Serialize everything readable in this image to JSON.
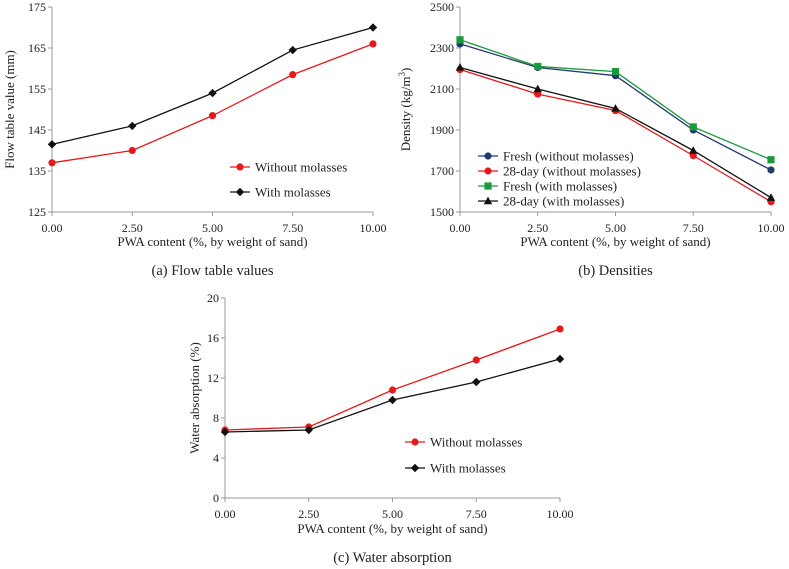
{
  "chart_data": [
    {
      "type": "line",
      "caption": "(a) Flow table values",
      "xlabel": "PWA content (%, by weight of sand)",
      "ylabel": "Flow table value (mm)",
      "x": [
        0.0,
        2.5,
        5.0,
        7.5,
        10.0
      ],
      "xticks": [
        "0.00",
        "2.50",
        "5.00",
        "7.50",
        "10.00"
      ],
      "xlim": [
        0,
        10
      ],
      "yticks": [
        "125",
        "135",
        "145",
        "155",
        "165",
        "175"
      ],
      "ylim": [
        125,
        175
      ],
      "series": [
        {
          "name": "Without molasses",
          "color": "#e8191d",
          "marker": "circle",
          "values": [
            137,
            140,
            148.5,
            158.5,
            166
          ]
        },
        {
          "name": "With molasses",
          "color": "#111111",
          "marker": "diamond",
          "values": [
            141.5,
            146,
            154,
            164.5,
            170
          ]
        }
      ]
    },
    {
      "type": "line",
      "caption": "(b) Densities",
      "xlabel": "PWA content (%, by weight of sand)",
      "ylabel_main": "Density (kg/m",
      "ylabel_sup": "3",
      "ylabel_end": ")",
      "x": [
        0.0,
        2.5,
        5.0,
        7.5,
        10.0
      ],
      "xticks": [
        "0.00",
        "2.50",
        "5.00",
        "7.50",
        "10.00"
      ],
      "xlim": [
        0,
        10
      ],
      "yticks": [
        "1500",
        "1700",
        "1900",
        "2100",
        "2300",
        "2500"
      ],
      "ylim": [
        1500,
        2500
      ],
      "series": [
        {
          "name": "Fresh (without molasses)",
          "color": "#1f3a6e",
          "marker": "circle",
          "values": [
            2320,
            2205,
            2165,
            1900,
            1705
          ]
        },
        {
          "name": "28-day (without molasses)",
          "color": "#e8191d",
          "marker": "circle",
          "values": [
            2195,
            2075,
            1995,
            1775,
            1550
          ]
        },
        {
          "name": "Fresh (with molasses)",
          "color": "#1a9a3c",
          "marker": "square",
          "values": [
            2340,
            2210,
            2185,
            1915,
            1755
          ]
        },
        {
          "name": "28-day (with molasses)",
          "color": "#111111",
          "marker": "triangle",
          "values": [
            2205,
            2100,
            2005,
            1800,
            1570
          ]
        }
      ]
    },
    {
      "type": "line",
      "caption": "(c) Water absorption",
      "xlabel": "PWA content (%, by weight of sand)",
      "ylabel": "Water absorption (%)",
      "x": [
        0.0,
        2.5,
        5.0,
        7.5,
        10.0
      ],
      "xticks": [
        "0.00",
        "2.50",
        "5.00",
        "7.50",
        "10.00"
      ],
      "xlim": [
        0,
        10
      ],
      "yticks": [
        "0",
        "4",
        "8",
        "12",
        "16",
        "20"
      ],
      "ylim": [
        0,
        20
      ],
      "series": [
        {
          "name": "Without molasses",
          "color": "#e8191d",
          "marker": "circle",
          "values": [
            6.8,
            7.1,
            10.8,
            13.8,
            16.9
          ]
        },
        {
          "name": "With molasses",
          "color": "#111111",
          "marker": "diamond",
          "values": [
            6.6,
            6.8,
            9.8,
            11.6,
            13.9
          ]
        }
      ]
    }
  ]
}
